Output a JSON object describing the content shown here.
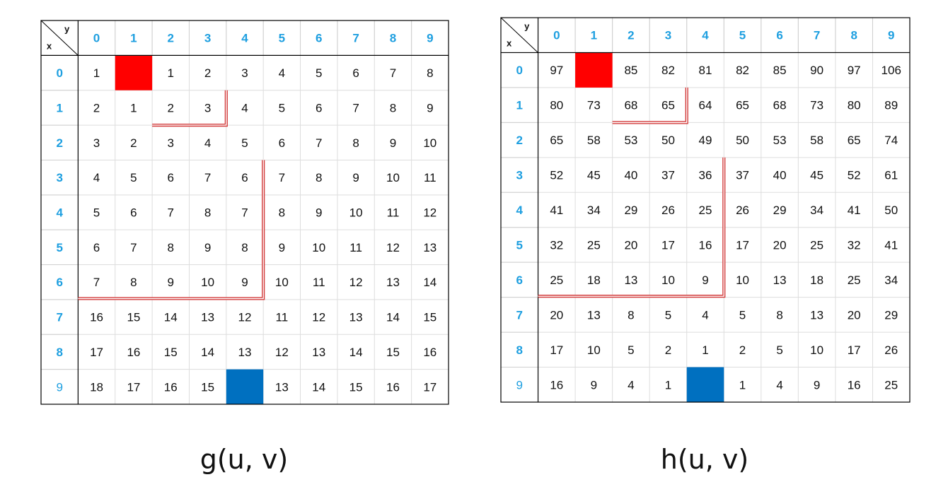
{
  "header": {
    "x_label": "x",
    "y_label": "y"
  },
  "colors": {
    "header_text": "#1e9fe0",
    "start_fill": "#ff0000",
    "goal_fill": "#0070c0",
    "boundary": "#d23c3c",
    "grid_line": "#dddddd",
    "border": "#000000"
  },
  "tables": [
    {
      "caption": "g(u, v)",
      "col_headers": [
        "0",
        "1",
        "2",
        "3",
        "4",
        "5",
        "6",
        "7",
        "8",
        "9"
      ],
      "row_headers": [
        "0",
        "1",
        "2",
        "3",
        "4",
        "5",
        "6",
        "7",
        "8",
        "9"
      ],
      "start_cell": [
        0,
        1
      ],
      "goal_cell": [
        9,
        4
      ],
      "cells": [
        [
          "1",
          "",
          "1",
          "2",
          "3",
          "4",
          "5",
          "6",
          "7",
          "8"
        ],
        [
          "2",
          "1",
          "2",
          "3",
          "4",
          "5",
          "6",
          "7",
          "8",
          "9"
        ],
        [
          "3",
          "2",
          "3",
          "4",
          "5",
          "6",
          "7",
          "8",
          "9",
          "10"
        ],
        [
          "4",
          "5",
          "6",
          "7",
          "6",
          "7",
          "8",
          "9",
          "10",
          "11"
        ],
        [
          "5",
          "6",
          "7",
          "8",
          "7",
          "8",
          "9",
          "10",
          "11",
          "12"
        ],
        [
          "6",
          "7",
          "8",
          "9",
          "8",
          "9",
          "10",
          "11",
          "12",
          "13"
        ],
        [
          "7",
          "8",
          "9",
          "10",
          "9",
          "10",
          "11",
          "12",
          "13",
          "14"
        ],
        [
          "16",
          "15",
          "14",
          "13",
          "12",
          "11",
          "12",
          "13",
          "14",
          "15"
        ],
        [
          "17",
          "16",
          "15",
          "14",
          "13",
          "12",
          "13",
          "14",
          "15",
          "16"
        ],
        [
          "18",
          "17",
          "16",
          "15",
          "",
          "13",
          "14",
          "15",
          "16",
          "17"
        ]
      ]
    },
    {
      "caption": "h(u, v)",
      "col_headers": [
        "0",
        "1",
        "2",
        "3",
        "4",
        "5",
        "6",
        "7",
        "8",
        "9"
      ],
      "row_headers": [
        "0",
        "1",
        "2",
        "3",
        "4",
        "5",
        "6",
        "7",
        "8",
        "9"
      ],
      "start_cell": [
        0,
        1
      ],
      "goal_cell": [
        9,
        4
      ],
      "cells": [
        [
          "97",
          "",
          "85",
          "82",
          "81",
          "82",
          "85",
          "90",
          "97",
          "106"
        ],
        [
          "80",
          "73",
          "68",
          "65",
          "64",
          "65",
          "68",
          "73",
          "80",
          "89"
        ],
        [
          "65",
          "58",
          "53",
          "50",
          "49",
          "50",
          "53",
          "58",
          "65",
          "74"
        ],
        [
          "52",
          "45",
          "40",
          "37",
          "36",
          "37",
          "40",
          "45",
          "52",
          "61"
        ],
        [
          "41",
          "34",
          "29",
          "26",
          "25",
          "26",
          "29",
          "34",
          "41",
          "50"
        ],
        [
          "32",
          "25",
          "20",
          "17",
          "16",
          "17",
          "20",
          "25",
          "32",
          "41"
        ],
        [
          "25",
          "18",
          "13",
          "10",
          "9",
          "10",
          "13",
          "18",
          "25",
          "34"
        ],
        [
          "20",
          "13",
          "8",
          "5",
          "4",
          "5",
          "8",
          "13",
          "20",
          "29"
        ],
        [
          "17",
          "10",
          "5",
          "2",
          "1",
          "2",
          "5",
          "10",
          "17",
          "26"
        ],
        [
          "16",
          "9",
          "4",
          "1",
          "",
          "1",
          "4",
          "9",
          "16",
          "25"
        ]
      ]
    }
  ]
}
